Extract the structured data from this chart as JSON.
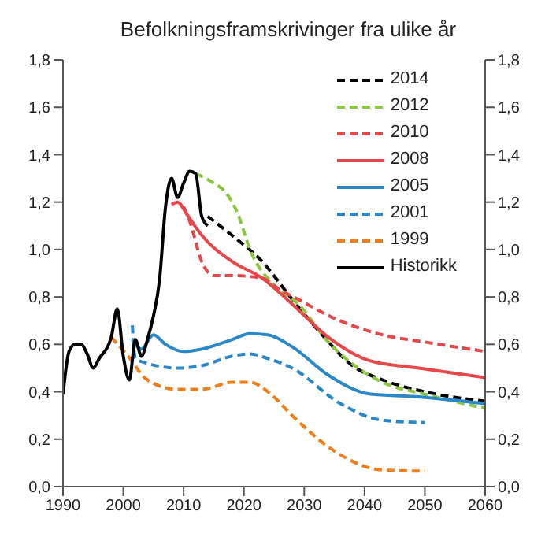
{
  "chart_data": {
    "type": "line",
    "title": "Befolkningsframskrivinger fra ulike år",
    "xlim": [
      1990,
      2060
    ],
    "xticks": [
      1990,
      2000,
      2010,
      2020,
      2030,
      2040,
      2050,
      2060
    ],
    "ylim": [
      0,
      1.8
    ],
    "yticks": [
      {
        "value": 0,
        "label": "0,0"
      },
      {
        "value": 0.2,
        "label": "0,2"
      },
      {
        "value": 0.4,
        "label": "0,4"
      },
      {
        "value": 0.6,
        "label": "0,6"
      },
      {
        "value": 0.8,
        "label": "0,8"
      },
      {
        "value": 1,
        "label": "1,0"
      },
      {
        "value": 1.2,
        "label": "1,2"
      },
      {
        "value": 1.4,
        "label": "1,4"
      },
      {
        "value": 1.6,
        "label": "1,6"
      },
      {
        "value": 1.8,
        "label": "1,8"
      }
    ],
    "y2lim": [
      0,
      1.8
    ],
    "y2ticks": [
      {
        "value": 0,
        "label": "0,0"
      },
      {
        "value": 0.2,
        "label": "0,2"
      },
      {
        "value": 0.4,
        "label": "0,4"
      },
      {
        "value": 0.6,
        "label": "0,6"
      },
      {
        "value": 0.8,
        "label": "0,8"
      },
      {
        "value": 1,
        "label": "1,0"
      },
      {
        "value": 1.2,
        "label": "1,2"
      },
      {
        "value": 1.4,
        "label": "1,4"
      },
      {
        "value": 1.6,
        "label": "1,6"
      },
      {
        "value": 1.8,
        "label": "1,8"
      }
    ],
    "legend": "top right",
    "marker": "none",
    "series": [
      {
        "name": "2014",
        "color": "#000000",
        "line_style": "dashed",
        "x": [
          2014,
          2018,
          2023,
          2028,
          2033,
          2038,
          2043,
          2050,
          2060
        ],
        "values": [
          1.14,
          1.06,
          0.95,
          0.79,
          0.64,
          0.51,
          0.45,
          0.4,
          0.36
        ]
      },
      {
        "name": "2012",
        "color": "#8cc63f",
        "line_style": "dashed",
        "x": [
          2012,
          2015,
          2017,
          2019,
          2021,
          2025,
          2029,
          2034,
          2043,
          2050,
          2060
        ],
        "values": [
          1.32,
          1.28,
          1.24,
          1.15,
          1.0,
          0.85,
          0.77,
          0.61,
          0.44,
          0.39,
          0.33
        ]
      },
      {
        "name": "2010",
        "color": "#e8464b",
        "line_style": "dashed",
        "x": [
          2010,
          2011,
          2013,
          2015,
          2018,
          2023,
          2026,
          2029,
          2035,
          2043,
          2050,
          2060
        ],
        "values": [
          1.18,
          1.12,
          0.95,
          0.89,
          0.89,
          0.88,
          0.83,
          0.79,
          0.71,
          0.64,
          0.61,
          0.57
        ]
      },
      {
        "name": "2008",
        "color": "#e8464b",
        "line_style": "solid",
        "x": [
          2008,
          2009,
          2010.5,
          2013,
          2018,
          2023,
          2028,
          2034,
          2041,
          2049,
          2060
        ],
        "values": [
          1.19,
          1.2,
          1.15,
          1.06,
          0.95,
          0.88,
          0.77,
          0.63,
          0.53,
          0.5,
          0.46
        ]
      },
      {
        "name": "2005",
        "color": "#2a88c8",
        "line_style": "solid",
        "x": [
          2001.5,
          2003,
          2005,
          2007,
          2010,
          2013,
          2018,
          2021,
          2024,
          2028,
          2034,
          2041,
          2048,
          2060
        ],
        "values": [
          0.62,
          0.58,
          0.64,
          0.6,
          0.57,
          0.58,
          0.62,
          0.645,
          0.64,
          0.59,
          0.47,
          0.39,
          0.38,
          0.35
        ]
      },
      {
        "name": "2001",
        "color": "#2a88c8",
        "line_style": "dashed",
        "x": [
          2001.5,
          2002,
          2004,
          2009,
          2013,
          2018,
          2021,
          2024,
          2028,
          2036,
          2043,
          2050
        ],
        "values": [
          0.68,
          0.54,
          0.52,
          0.5,
          0.51,
          0.55,
          0.56,
          0.54,
          0.5,
          0.35,
          0.28,
          0.27
        ]
      },
      {
        "name": "1999",
        "color": "#f07d19",
        "line_style": "dashed",
        "x": [
          1998,
          2000.5,
          2004,
          2009,
          2013,
          2018,
          2021,
          2024,
          2028,
          2035,
          2043,
          2050
        ],
        "values": [
          0.63,
          0.56,
          0.45,
          0.41,
          0.41,
          0.44,
          0.44,
          0.4,
          0.3,
          0.15,
          0.07,
          0.065
        ]
      },
      {
        "name": "Historikk",
        "color": "#000000",
        "line_style": "solid",
        "x": [
          1990,
          1991,
          1992,
          1993,
          1994,
          1995,
          1996,
          1998,
          1999,
          2000,
          2001,
          2002,
          2003,
          2004,
          2005,
          2006,
          2007,
          2008,
          2009,
          2010,
          2011,
          2012,
          2013,
          2014
        ],
        "values": [
          0.39,
          0.57,
          0.6,
          0.6,
          0.56,
          0.5,
          0.54,
          0.63,
          0.75,
          0.55,
          0.45,
          0.62,
          0.55,
          0.62,
          0.72,
          0.87,
          1.18,
          1.3,
          1.22,
          1.28,
          1.33,
          1.32,
          1.14,
          1.1
        ]
      }
    ]
  }
}
